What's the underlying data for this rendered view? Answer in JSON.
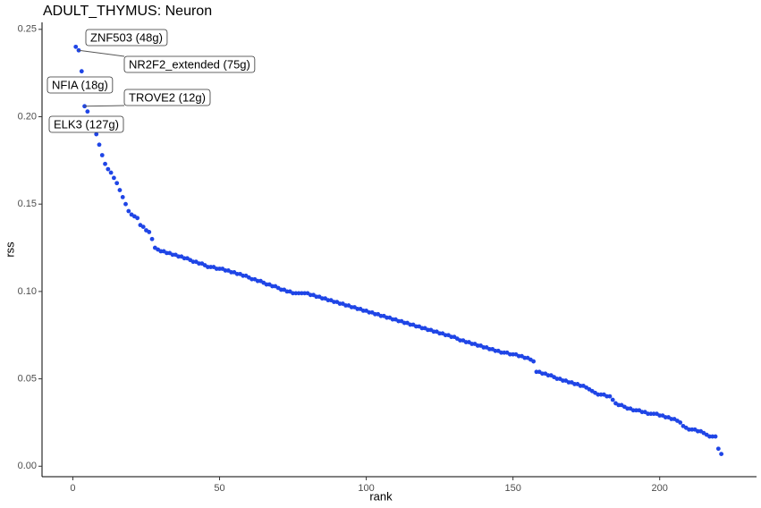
{
  "chart_data": {
    "type": "scatter",
    "title": "ADULT_THYMUS: Neuron",
    "x_label": "rank",
    "y_label": "rss",
    "color": "#1f45e6",
    "xlim": [
      -10.5,
      233
    ],
    "ylim": [
      -0.006,
      0.254
    ],
    "xticks": [
      0,
      50,
      100,
      150,
      200
    ],
    "yticks": [
      {
        "value": 0,
        "label": "0.00"
      },
      {
        "value": 0.05,
        "label": "0.05"
      },
      {
        "value": 0.1,
        "label": "0.10"
      },
      {
        "value": 0.15,
        "label": "0.15"
      },
      {
        "value": 0.2,
        "label": "0.20"
      },
      {
        "value": 0.25,
        "label": "0.25"
      }
    ],
    "annotations": [
      {
        "text": "ZNF503 (48g)",
        "x": 1
      },
      {
        "text": "NR2F2_extended (75g)",
        "x": 2
      },
      {
        "text": "NFIA (18g)",
        "x": 3
      },
      {
        "text": "TROVE2 (12g)",
        "x": 4
      },
      {
        "text": "ELK3 (127g)",
        "x": 5
      }
    ],
    "x": [
      1,
      2,
      3,
      4,
      5,
      6,
      7,
      8,
      9,
      10,
      11,
      12,
      13,
      14,
      15,
      16,
      17,
      18,
      19,
      20,
      21,
      22,
      23,
      24,
      25,
      26,
      27,
      28,
      29,
      30,
      31,
      32,
      33,
      34,
      35,
      36,
      37,
      38,
      39,
      40,
      41,
      42,
      43,
      44,
      45,
      46,
      47,
      48,
      49,
      50,
      51,
      52,
      53,
      54,
      55,
      56,
      57,
      58,
      59,
      60,
      61,
      62,
      63,
      64,
      65,
      66,
      67,
      68,
      69,
      70,
      71,
      72,
      73,
      74,
      75,
      76,
      77,
      78,
      79,
      80,
      81,
      82,
      83,
      84,
      85,
      86,
      87,
      88,
      89,
      90,
      91,
      92,
      93,
      94,
      95,
      96,
      97,
      98,
      99,
      100,
      101,
      102,
      103,
      104,
      105,
      106,
      107,
      108,
      109,
      110,
      111,
      112,
      113,
      114,
      115,
      116,
      117,
      118,
      119,
      120,
      121,
      122,
      123,
      124,
      125,
      126,
      127,
      128,
      129,
      130,
      131,
      132,
      133,
      134,
      135,
      136,
      137,
      138,
      139,
      140,
      141,
      142,
      143,
      144,
      145,
      146,
      147,
      148,
      149,
      150,
      151,
      152,
      153,
      154,
      155,
      156,
      157,
      158,
      159,
      160,
      161,
      162,
      163,
      164,
      165,
      166,
      167,
      168,
      169,
      170,
      171,
      172,
      173,
      174,
      175,
      176,
      177,
      178,
      179,
      180,
      181,
      182,
      183,
      184,
      185,
      186,
      187,
      188,
      189,
      190,
      191,
      192,
      193,
      194,
      195,
      196,
      197,
      198,
      199,
      200,
      201,
      202,
      203,
      204,
      205,
      206,
      207,
      208,
      209,
      210,
      211,
      212,
      213,
      214,
      215,
      216,
      217,
      218,
      219,
      220,
      221
    ],
    "values": [
      0.24,
      0.238,
      0.226,
      0.206,
      0.203,
      0.198,
      0.194,
      0.19,
      0.184,
      0.178,
      0.173,
      0.17,
      0.168,
      0.165,
      0.162,
      0.158,
      0.154,
      0.15,
      0.146,
      0.144,
      0.143,
      0.142,
      0.138,
      0.137,
      0.135,
      0.134,
      0.13,
      0.125,
      0.124,
      0.123,
      0.123,
      0.122,
      0.122,
      0.121,
      0.121,
      0.12,
      0.12,
      0.119,
      0.119,
      0.118,
      0.117,
      0.117,
      0.116,
      0.116,
      0.115,
      0.114,
      0.114,
      0.114,
      0.113,
      0.113,
      0.113,
      0.112,
      0.112,
      0.111,
      0.111,
      0.11,
      0.11,
      0.109,
      0.109,
      0.108,
      0.107,
      0.107,
      0.106,
      0.106,
      0.105,
      0.104,
      0.104,
      0.103,
      0.103,
      0.102,
      0.101,
      0.101,
      0.1,
      0.1,
      0.099,
      0.099,
      0.099,
      0.099,
      0.099,
      0.099,
      0.098,
      0.098,
      0.097,
      0.097,
      0.096,
      0.096,
      0.095,
      0.095,
      0.094,
      0.094,
      0.093,
      0.093,
      0.092,
      0.092,
      0.091,
      0.091,
      0.09,
      0.09,
      0.089,
      0.089,
      0.088,
      0.088,
      0.087,
      0.087,
      0.086,
      0.086,
      0.085,
      0.085,
      0.084,
      0.084,
      0.083,
      0.083,
      0.082,
      0.082,
      0.081,
      0.081,
      0.08,
      0.08,
      0.079,
      0.079,
      0.078,
      0.078,
      0.077,
      0.077,
      0.076,
      0.076,
      0.075,
      0.075,
      0.074,
      0.074,
      0.073,
      0.072,
      0.072,
      0.071,
      0.071,
      0.07,
      0.07,
      0.069,
      0.069,
      0.068,
      0.068,
      0.067,
      0.067,
      0.066,
      0.066,
      0.065,
      0.065,
      0.065,
      0.064,
      0.064,
      0.064,
      0.063,
      0.063,
      0.062,
      0.062,
      0.061,
      0.06,
      0.054,
      0.054,
      0.053,
      0.053,
      0.052,
      0.052,
      0.051,
      0.05,
      0.05,
      0.049,
      0.049,
      0.048,
      0.048,
      0.047,
      0.047,
      0.046,
      0.046,
      0.045,
      0.044,
      0.043,
      0.042,
      0.041,
      0.041,
      0.041,
      0.04,
      0.04,
      0.038,
      0.036,
      0.035,
      0.035,
      0.034,
      0.033,
      0.033,
      0.032,
      0.032,
      0.032,
      0.031,
      0.031,
      0.03,
      0.03,
      0.03,
      0.03,
      0.029,
      0.029,
      0.028,
      0.028,
      0.027,
      0.027,
      0.026,
      0.025,
      0.023,
      0.022,
      0.021,
      0.021,
      0.021,
      0.02,
      0.02,
      0.019,
      0.018,
      0.017,
      0.017,
      0.017,
      0.01,
      0.007
    ]
  }
}
